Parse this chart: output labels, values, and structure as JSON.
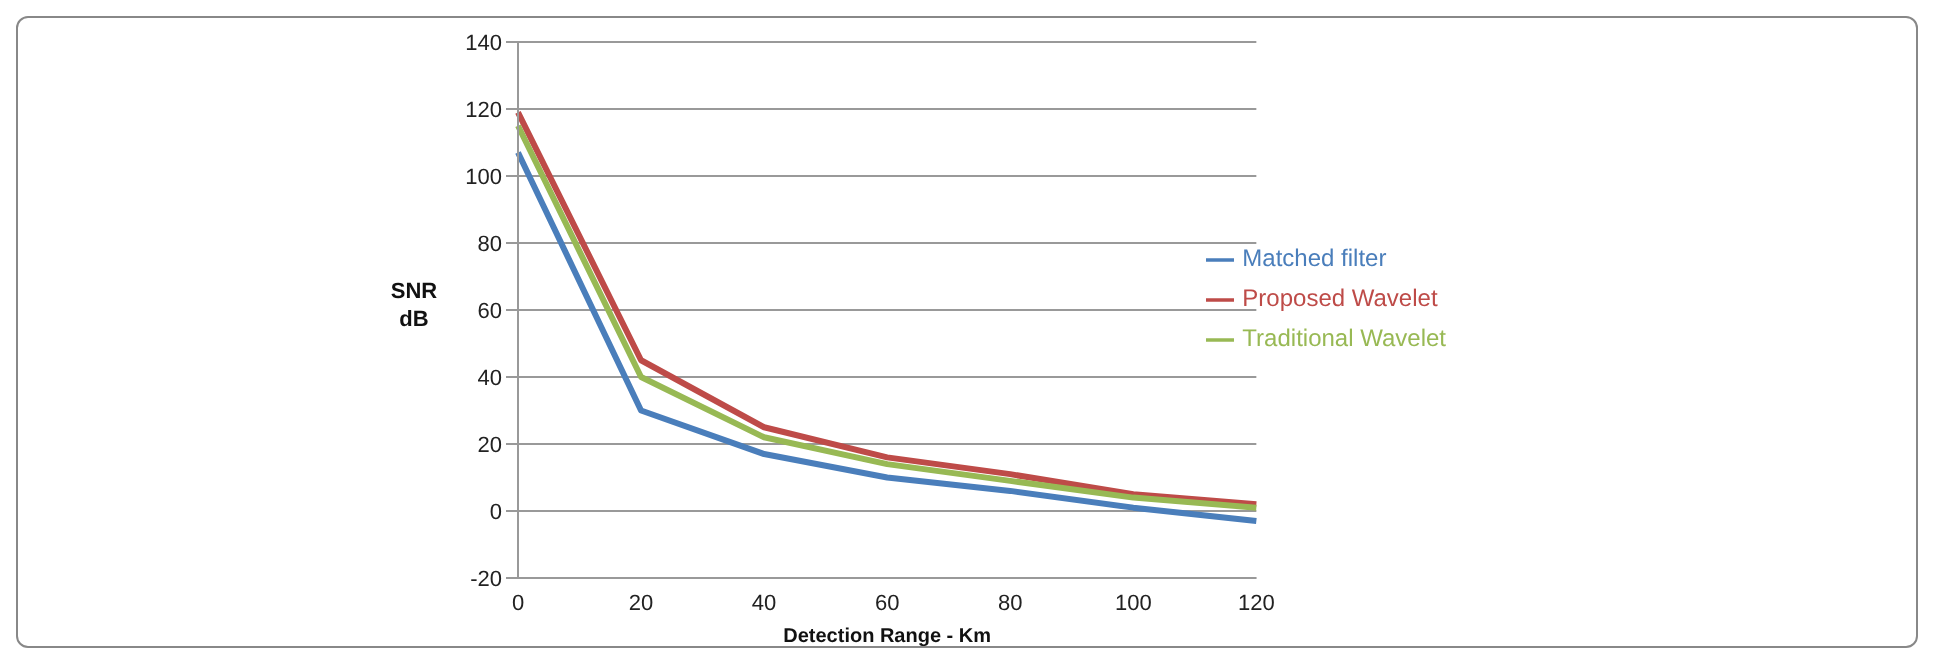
{
  "chart_data": {
    "type": "line",
    "xlabel": "Detection Range - Km",
    "ylabel": "SNR dB",
    "categories": [
      "0",
      "20",
      "40",
      "60",
      "80",
      "100",
      "120"
    ],
    "series": [
      {
        "name": "Matched filter",
        "color": "#4a7ebb",
        "values": [
          107,
          30,
          17,
          10,
          6,
          1,
          -3
        ]
      },
      {
        "name": "Proposed Wavelet",
        "color": "#be4b48",
        "values": [
          119,
          45,
          25,
          16,
          11,
          5,
          2
        ]
      },
      {
        "name": "Traditional Wavelet",
        "color": "#98b954",
        "values": [
          115,
          40,
          22,
          14,
          9,
          4,
          1
        ]
      }
    ],
    "ylim": [
      -20,
      140
    ],
    "yticks": [
      -20,
      0,
      20,
      40,
      60,
      80,
      100,
      120,
      140
    ],
    "grid": "y",
    "legend": "right",
    "marker": "none",
    "line_style": "solid"
  }
}
